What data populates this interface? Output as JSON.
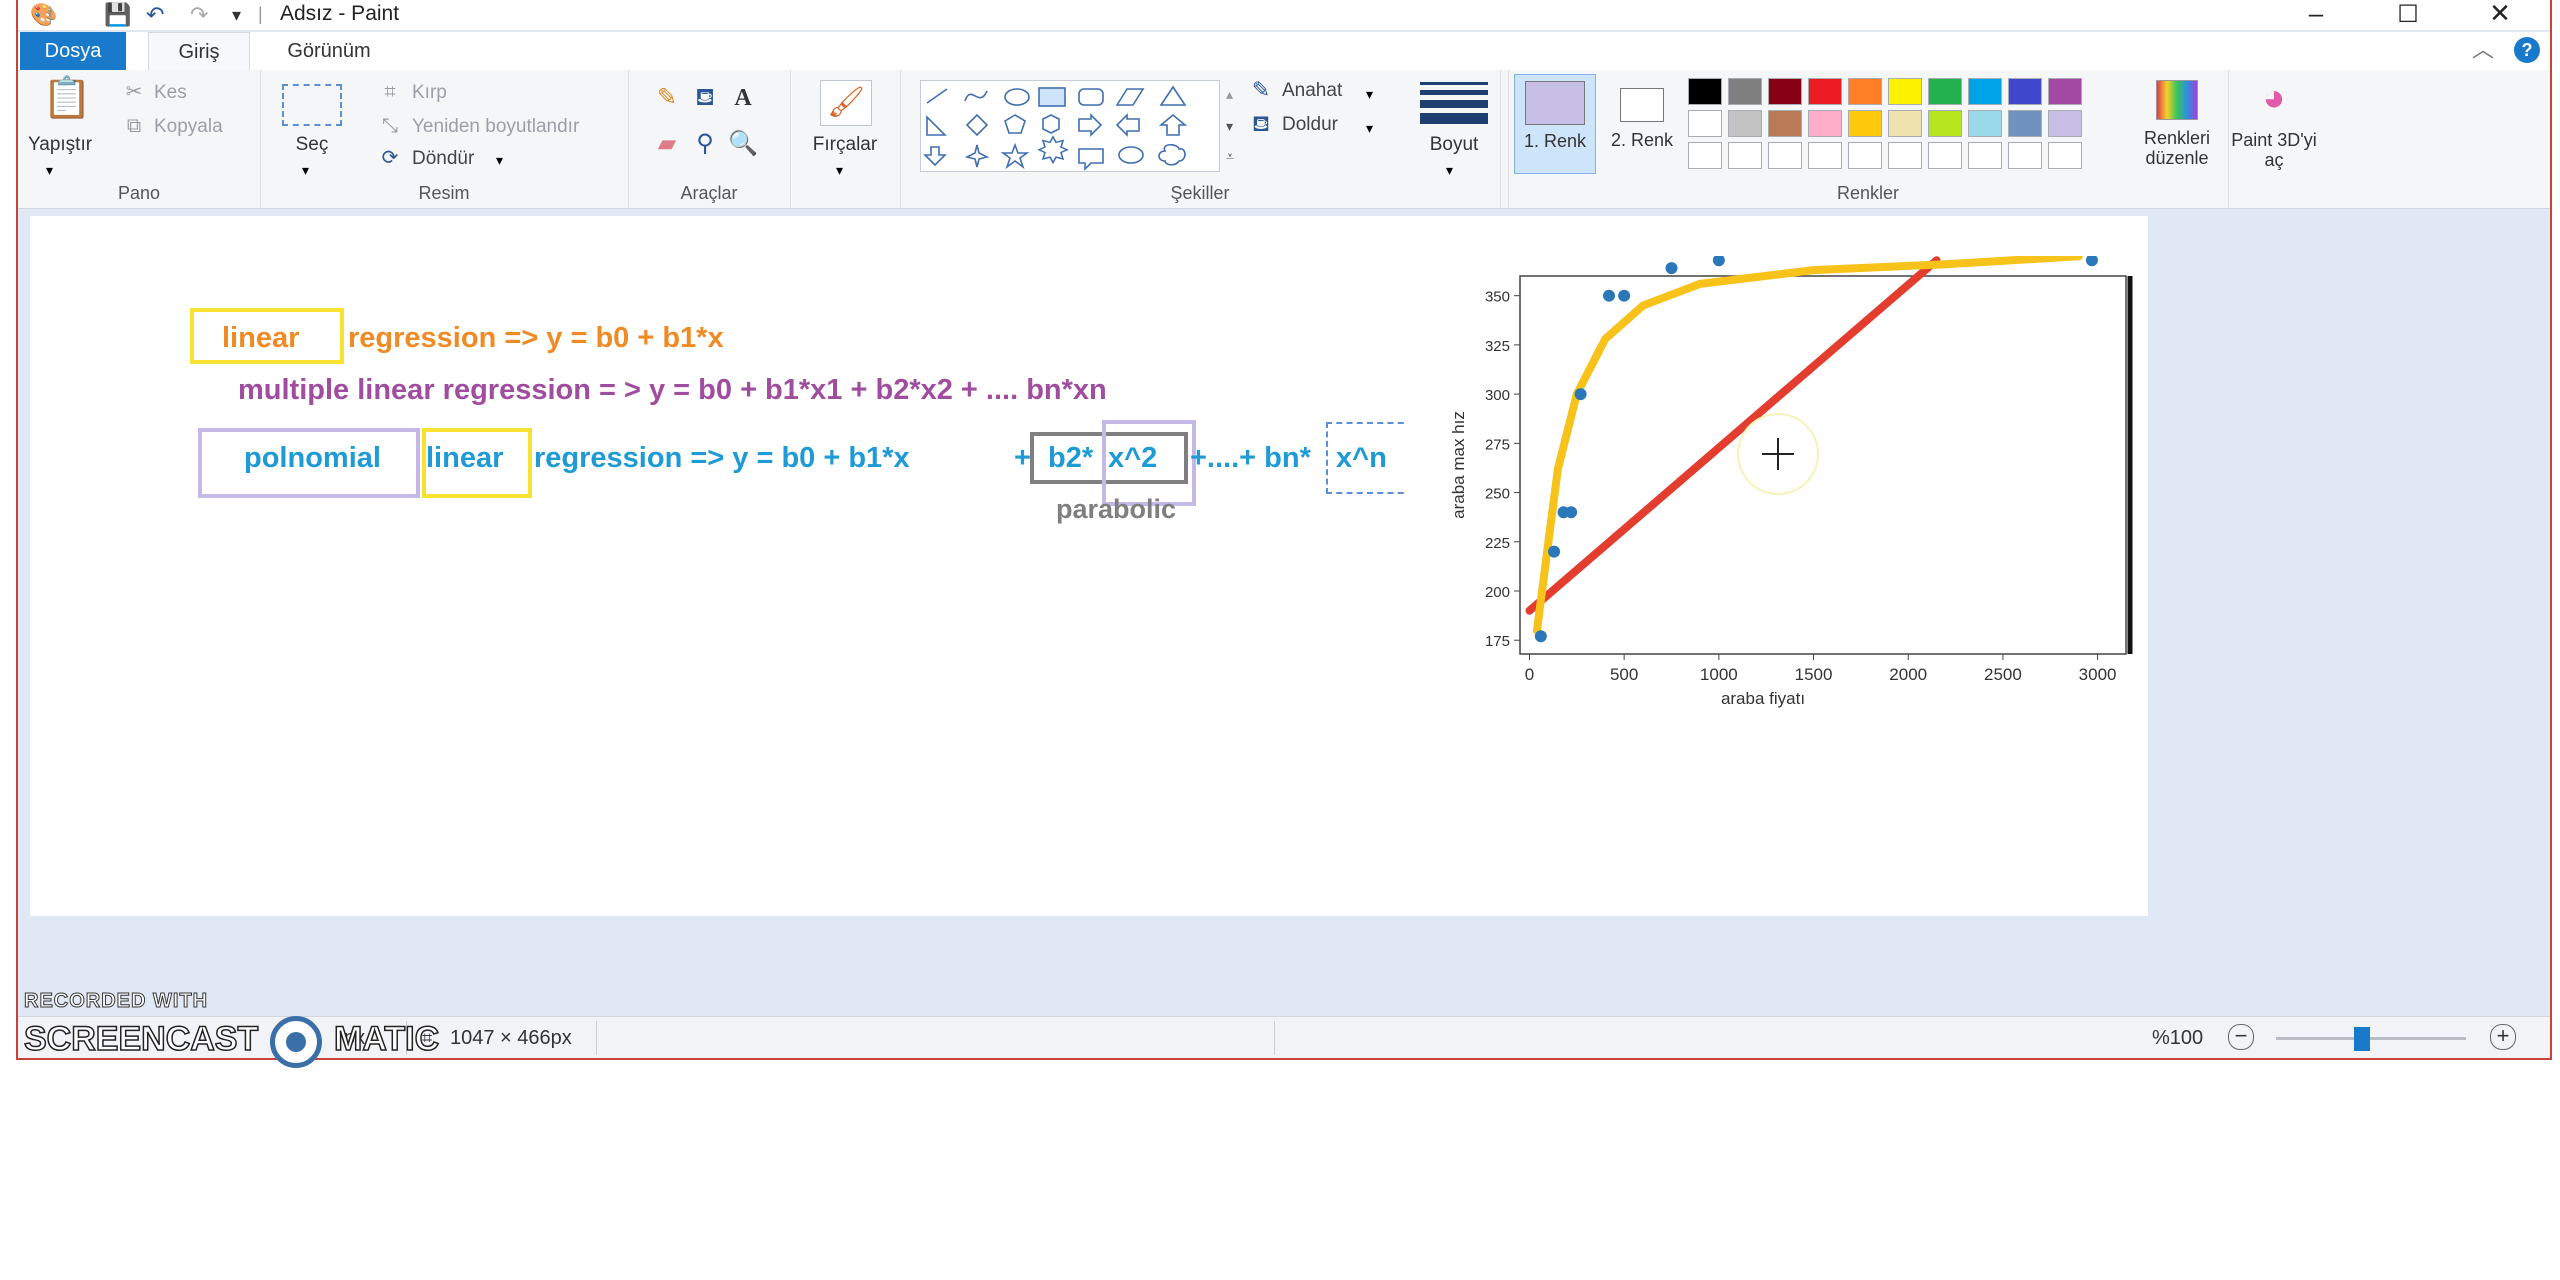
{
  "window": {
    "title": "Adsız - Paint"
  },
  "tabs": {
    "file": "Dosya",
    "home": "Giriş",
    "view": "Görünüm"
  },
  "ribbon": {
    "clipboard": {
      "label": "Pano",
      "paste": "Yapıştır",
      "cut": "Kes",
      "copy": "Kopyala"
    },
    "image": {
      "label": "Resim",
      "select": "Seç",
      "crop": "Kırp",
      "resize": "Yeniden boyutlandır",
      "rotate": "Döndür"
    },
    "tools": {
      "label": "Araçlar"
    },
    "brushes": {
      "label": "Fırçalar"
    },
    "shapes": {
      "label": "Şekiller",
      "outline": "Anahat",
      "fill": "Doldur"
    },
    "size": {
      "label": "Boyut"
    },
    "colors": {
      "label": "Renkler",
      "color1": "1. Renk",
      "color2": "2. Renk",
      "edit": "Renkleri düzenle",
      "row1": [
        "#000000",
        "#7f7f7f",
        "#880015",
        "#ed1c24",
        "#ff7f27",
        "#fff200",
        "#22b14c",
        "#00a2e8",
        "#3f48cc",
        "#a349a4"
      ],
      "row2": [
        "#ffffff",
        "#c3c3c3",
        "#b97a57",
        "#ffaec9",
        "#ffc90e",
        "#efe4b0",
        "#b5e61d",
        "#99d9ea",
        "#7092be",
        "#c8bfe7"
      ],
      "color1_value": "#c8bfe7",
      "color2_value": "#ffffff"
    },
    "paint3d": "Paint 3D'yi aç"
  },
  "canvas": {
    "line1_boxed": "linear",
    "line1_rest": "regression =>  y = b0 + b1*x",
    "line2": "multiple linear regression = >   y = b0 + b1*x1 + b2*x2 + .... bn*xn",
    "line3_word1": "polnomial",
    "line3_word2": "linear",
    "line3_rest": "regression => y = b0 + b1*x",
    "line3_plus": "+",
    "line3_term1": "b2*",
    "line3_term2": "x^2",
    "line3_tail": "+....+ bn*",
    "line3_last": "x^n",
    "parabolic": "parabolic",
    "colors": {
      "orange": "#f08a24",
      "purple": "#a04da0",
      "blue": "#1e9ad6",
      "yellow": "#f7e232",
      "lavender": "#c3b8e6",
      "gray": "#7f7f7f"
    }
  },
  "chart_data": {
    "type": "scatter",
    "xlabel": "araba fiyatı",
    "ylabel": "araba max hız",
    "xticks": [
      0,
      500,
      1000,
      1500,
      2000,
      2500,
      3000
    ],
    "yticks": [
      175,
      200,
      225,
      250,
      275,
      300,
      325,
      350
    ],
    "xlim": [
      -50,
      3150
    ],
    "ylim": [
      168,
      360
    ],
    "points": [
      [
        60,
        177
      ],
      [
        130,
        220
      ],
      [
        180,
        240
      ],
      [
        220,
        240
      ],
      [
        270,
        300
      ],
      [
        420,
        350
      ],
      [
        500,
        350
      ],
      [
        750,
        364
      ],
      [
        1000,
        368
      ],
      [
        2970,
        368
      ]
    ],
    "linear_fit": [
      [
        0,
        190
      ],
      [
        2150,
        368
      ]
    ],
    "poly_fit": [
      [
        40,
        180
      ],
      [
        100,
        225
      ],
      [
        150,
        262
      ],
      [
        250,
        300
      ],
      [
        400,
        328
      ],
      [
        600,
        345
      ],
      [
        900,
        356
      ],
      [
        1500,
        363
      ],
      [
        2200,
        366
      ],
      [
        2900,
        370
      ]
    ]
  },
  "status": {
    "size": "1047 × 466px",
    "cursor_suffix": "px",
    "zoom": "%100"
  },
  "watermark": {
    "line1": "RECORDED WITH",
    "line2a": "SCREENCAST",
    "line2b": "MATIC"
  }
}
